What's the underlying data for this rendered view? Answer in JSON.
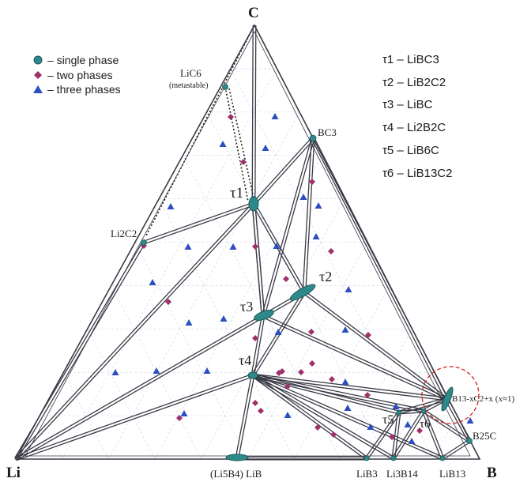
{
  "vertices": {
    "top": "C",
    "left": "Li",
    "right": "B"
  },
  "legend": [
    {
      "label": "– single phase",
      "marker": "circle",
      "color": "#2e8a8a"
    },
    {
      "label": "– two phases",
      "marker": "diamond",
      "color": "#a0306a"
    },
    {
      "label": "– three phases",
      "marker": "triangle",
      "color": "#2d4ec0"
    }
  ],
  "phase_list": [
    {
      "sym": "τ",
      "num": "1",
      "formula": "– LiBC",
      "sub": "3",
      "rest": ""
    },
    {
      "sym": "τ",
      "num": "2",
      "formula": "– LiB",
      "sub": "2",
      "rest": "C2"
    },
    {
      "sym": "τ",
      "num": "3",
      "formula": "– LiBC",
      "sub": "",
      "rest": ""
    },
    {
      "sym": "τ",
      "num": "4",
      "formula": "– Li2B2C",
      "sub": "",
      "rest": ""
    },
    {
      "sym": "τ",
      "num": "5",
      "formula": "– LiB6C",
      "sub": "",
      "rest": ""
    },
    {
      "sym": "τ",
      "num": "6",
      "formula": "– LiB13C2",
      "sub": "",
      "rest": ""
    }
  ],
  "phase_list_text": [
    "τ1 – LiBC3",
    "τ2 – LiB2C2",
    "τ3 – LiBC",
    "τ4 – Li2B2C",
    "τ5 – LiB6C",
    "τ6 – LiB13C2"
  ],
  "compound_labels": {
    "lic6": "LiC6",
    "metastable": "(metastable)",
    "bc3": "BC3",
    "li2c2": "Li2C2",
    "tau1": "τ1",
    "tau2": "τ2",
    "tau3": "τ3",
    "tau4": "τ4",
    "tau5": "τ5",
    "tau6": "τ6",
    "b13c2": "B13-xC2+x (x≈1)",
    "b25c": "B25C",
    "li5b4": "(Li5B4) LiB",
    "lib3": "LiB3",
    "li3b14": "Li3B14",
    "lib13": "LiB13"
  },
  "colors": {
    "single_phase": "#2e8a8a",
    "two_phases": "#a0306a",
    "three_phases": "#2d4ec0",
    "highlight_circle": "#d42020"
  }
}
